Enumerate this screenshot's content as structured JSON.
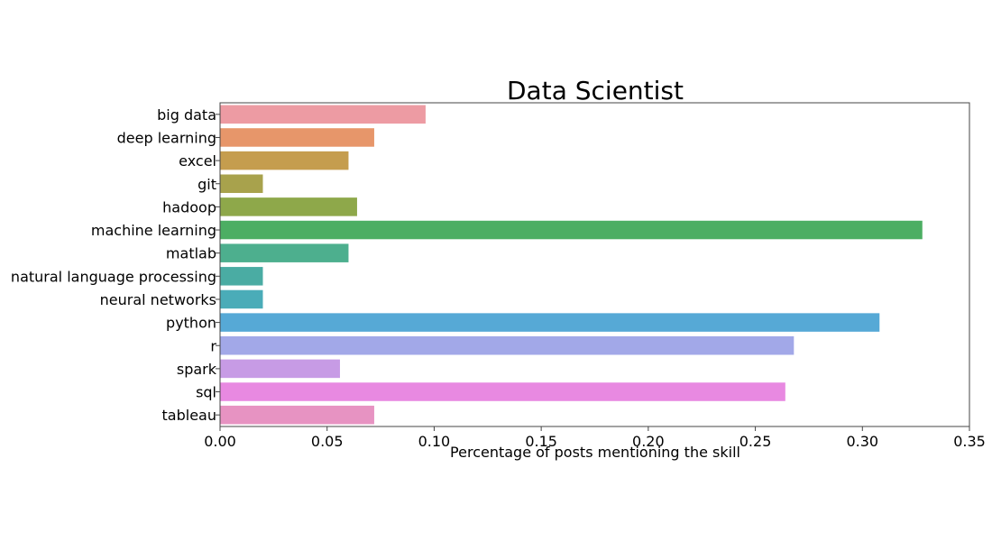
{
  "chart_data": {
    "type": "bar",
    "orientation": "horizontal",
    "title": "Data Scientist",
    "xlabel": "Percentage of posts mentioning the skill",
    "ylabel": "",
    "xlim": [
      0,
      0.35
    ],
    "x_ticks": [
      "0.00",
      "0.05",
      "0.10",
      "0.15",
      "0.20",
      "0.25",
      "0.30",
      "0.35"
    ],
    "grid": false,
    "categories": [
      "big data",
      "deep learning",
      "excel",
      "git",
      "hadoop",
      "machine learning",
      "matlab",
      "natural language processing",
      "neural networks",
      "python",
      "r",
      "spark",
      "sql",
      "tableau"
    ],
    "values": [
      0.096,
      0.072,
      0.06,
      0.02,
      0.064,
      0.328,
      0.06,
      0.02,
      0.02,
      0.308,
      0.268,
      0.056,
      0.264,
      0.072
    ],
    "colors": [
      "#ed9ba3",
      "#e7966a",
      "#c59d4e",
      "#a8a24c",
      "#8ea84a",
      "#4cae63",
      "#4daf8e",
      "#4aaca3",
      "#4aacb8",
      "#56a9d6",
      "#a2a8e8",
      "#c79be5",
      "#e889e1",
      "#e793c2"
    ]
  }
}
